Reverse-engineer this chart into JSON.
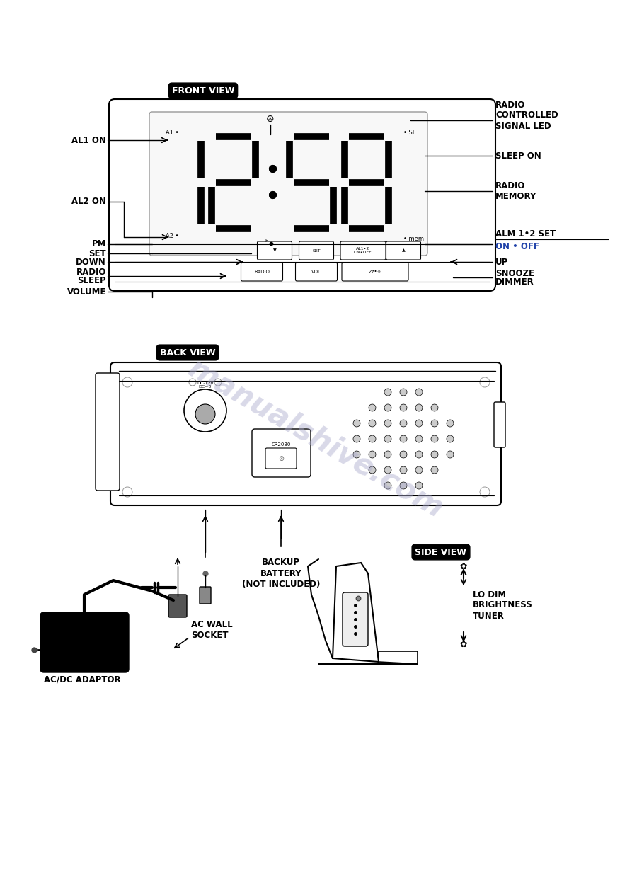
{
  "bg_color": "#ffffff",
  "watermark_text": "manualshive.com",
  "watermark_color": "#aaaacc",
  "watermark_alpha": 0.45,
  "front_view_label": "FRONT VIEW",
  "back_view_label": "BACK VIEW",
  "side_view_label": "SIDE VIEW",
  "fig_w": 8.93,
  "fig_h": 12.63,
  "dpi": 100
}
